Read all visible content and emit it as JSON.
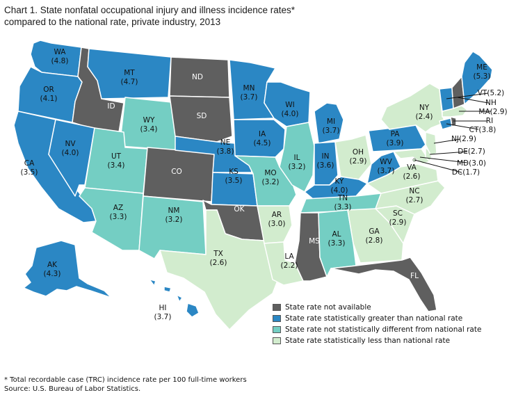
{
  "title_line1": "Chart 1. State nonfatal occupational injury and illness incidence rates*",
  "title_line2": "compared to the national rate, private industry, 2013",
  "colors": {
    "not_available": "#5f5f5f",
    "greater": "#2b87c4",
    "not_different": "#74cec3",
    "less": "#d2ecce"
  },
  "legend": [
    {
      "key": "not_available",
      "label": "State rate not available"
    },
    {
      "key": "greater",
      "label": "State rate statistically greater than national rate"
    },
    {
      "key": "not_different",
      "label": "State rate not statistically different from national rate"
    },
    {
      "key": "less",
      "label": "State rate statistically less than national rate"
    }
  ],
  "states": {
    "WA": {
      "rate": "(4.8)",
      "category": "greater"
    },
    "OR": {
      "rate": "(4.1)",
      "category": "greater"
    },
    "CA": {
      "rate": "(3.5)",
      "category": "greater"
    },
    "NV": {
      "rate": "(4.0)",
      "category": "greater"
    },
    "ID": {
      "rate": "",
      "category": "not_available"
    },
    "MT": {
      "rate": "(4.7)",
      "category": "greater"
    },
    "WY": {
      "rate": "(3.4)",
      "category": "not_different"
    },
    "UT": {
      "rate": "(3.4)",
      "category": "not_different"
    },
    "AZ": {
      "rate": "(3.3)",
      "category": "not_different"
    },
    "CO": {
      "rate": "",
      "category": "not_available"
    },
    "NM": {
      "rate": "(3.2)",
      "category": "not_different"
    },
    "ND": {
      "rate": "",
      "category": "not_available"
    },
    "SD": {
      "rate": "",
      "category": "not_available"
    },
    "NE": {
      "rate": "(3.8)",
      "category": "greater"
    },
    "KS": {
      "rate": "(3.5)",
      "category": "greater"
    },
    "OK": {
      "rate": "",
      "category": "not_available"
    },
    "TX": {
      "rate": "(2.6)",
      "category": "less"
    },
    "MN": {
      "rate": "(3.7)",
      "category": "greater"
    },
    "IA": {
      "rate": "(4.5)",
      "category": "greater"
    },
    "MO": {
      "rate": "(3.2)",
      "category": "not_different"
    },
    "AR": {
      "rate": "(3.0)",
      "category": "less"
    },
    "LA": {
      "rate": "(2.2)",
      "category": "less"
    },
    "WI": {
      "rate": "(4.0)",
      "category": "greater"
    },
    "IL": {
      "rate": "(3.2)",
      "category": "not_different"
    },
    "MI": {
      "rate": "(3.7)",
      "category": "greater"
    },
    "IN": {
      "rate": "(3.6)",
      "category": "greater"
    },
    "OH": {
      "rate": "(2.9)",
      "category": "less"
    },
    "KY": {
      "rate": "(4.0)",
      "category": "greater"
    },
    "TN": {
      "rate": "(3.3)",
      "category": "not_different"
    },
    "MS": {
      "rate": "",
      "category": "not_available"
    },
    "AL": {
      "rate": "(3.3)",
      "category": "not_different"
    },
    "GA": {
      "rate": "(2.8)",
      "category": "less"
    },
    "FL": {
      "rate": "",
      "category": "not_available"
    },
    "SC": {
      "rate": "(2.9)",
      "category": "less"
    },
    "NC": {
      "rate": "(2.7)",
      "category": "less"
    },
    "VA": {
      "rate": "(2.6)",
      "category": "less"
    },
    "WV": {
      "rate": "(3.7)",
      "category": "greater"
    },
    "PA": {
      "rate": "(3.9)",
      "category": "greater"
    },
    "NY": {
      "rate": "(2.4)",
      "category": "less"
    },
    "ME": {
      "rate": "(5.3)",
      "category": "greater"
    },
    "VT": {
      "rate": "(5.2)",
      "category": "greater"
    },
    "NH": {
      "rate": "",
      "category": "not_available"
    },
    "MA": {
      "rate": "(2.9)",
      "category": "less"
    },
    "RI": {
      "rate": "",
      "category": "not_available"
    },
    "CT": {
      "rate": "(3.8)",
      "category": "greater"
    },
    "NJ": {
      "rate": "(2.9)",
      "category": "less"
    },
    "DE": {
      "rate": "(2.7)",
      "category": "less"
    },
    "MD": {
      "rate": "(3.0)",
      "category": "less"
    },
    "DC": {
      "rate": "(1.7)",
      "category": "less"
    },
    "AK": {
      "rate": "(4.3)",
      "category": "greater"
    },
    "HI": {
      "rate": "(3.7)",
      "category": "greater"
    }
  },
  "footnote": "* Total recordable case (TRC) incidence rate per 100 full-time workers",
  "source": "Source: U.S. Bureau of Labor Statistics."
}
